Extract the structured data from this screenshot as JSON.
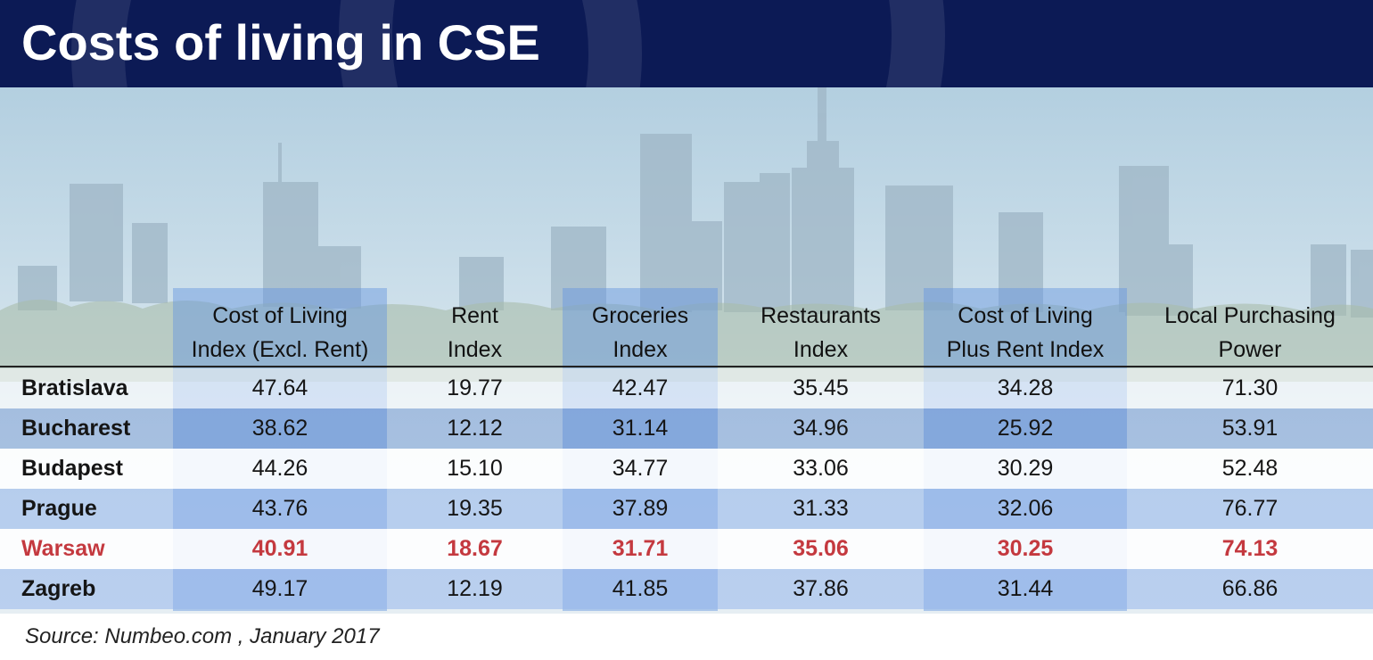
{
  "title": "Costs of living in CSE",
  "source": "Source: Numbeo.com , January 2017",
  "colors": {
    "header_bg": "#0c1a55",
    "highlight_text": "#c4393f",
    "band_blue": "#6494e0"
  },
  "chart_data": {
    "type": "table",
    "title": "Costs of living in CSE",
    "columns": [
      "Cost of Living\nIndex (Excl. Rent)",
      "Rent\nIndex",
      "Groceries\nIndex",
      "Restaurants\nIndex",
      "Cost of Living\nPlus Rent Index",
      "Local Purchasing\nPower"
    ],
    "rows": [
      {
        "city": "Bratislava",
        "values": [
          "47.64",
          "19.77",
          "42.47",
          "35.45",
          "34.28",
          "71.30"
        ],
        "highlight": false
      },
      {
        "city": "Bucharest",
        "values": [
          "38.62",
          "12.12",
          "31.14",
          "34.96",
          "25.92",
          "53.91"
        ],
        "highlight": false
      },
      {
        "city": "Budapest",
        "values": [
          "44.26",
          "15.10",
          "34.77",
          "33.06",
          "30.29",
          "52.48"
        ],
        "highlight": false
      },
      {
        "city": "Prague",
        "values": [
          "43.76",
          "19.35",
          "37.89",
          "31.33",
          "32.06",
          "76.77"
        ],
        "highlight": false
      },
      {
        "city": "Warsaw",
        "values": [
          "40.91",
          "18.67",
          "31.71",
          "35.06",
          "30.25",
          "74.13"
        ],
        "highlight": true
      },
      {
        "city": "Zagreb",
        "values": [
          "49.17",
          "12.19",
          "41.85",
          "37.86",
          "31.44",
          "66.86"
        ],
        "highlight": false
      }
    ],
    "source": "Source: Numbeo.com , January 2017"
  }
}
